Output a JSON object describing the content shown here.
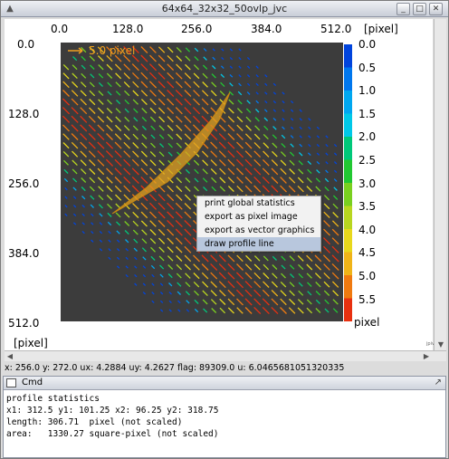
{
  "window": {
    "title": "64x64_32x32_50ovlp_jvc"
  },
  "plot": {
    "x_ticks": [
      "0.0",
      "128.0",
      "256.0",
      "384.0",
      "512.0"
    ],
    "x_unit": "[pixel]",
    "y_ticks": [
      "0.0",
      "128.0",
      "256.0",
      "384.0",
      "512.0"
    ],
    "y_unit": "[pixel]",
    "reference_vector_label": "5.0 pixel",
    "colorbar": {
      "labels": [
        "0.0",
        "0.5",
        "1.0",
        "1.5",
        "2.0",
        "2.5",
        "3.0",
        "3.5",
        "4.0",
        "4.5",
        "5.0",
        "5.5"
      ],
      "unit": "pixel",
      "colors": [
        "#0044dd",
        "#0077ee",
        "#00a7f0",
        "#00c8e8",
        "#00c87a",
        "#22c832",
        "#7ad020",
        "#b8d620",
        "#e8d81c",
        "#f0b418",
        "#f07a10",
        "#e83010"
      ]
    },
    "background_color": "#3c3c3c"
  },
  "context_menu": {
    "items": [
      "print global statistics",
      "export as pixel image",
      "export as vector graphics",
      "draw profile line"
    ],
    "selected_index": 3
  },
  "status_bar": {
    "text": "x: 256.0 y: 272.0 ux: 4.2884 uy: 4.2627 flag: 89309.0 u: 6.0465681051320335"
  },
  "cmd": {
    "title": "Cmd",
    "lines": [
      "profile statistics",
      "x1: 312.5 y1: 101.25 x2: 96.25 y2: 318.75",
      "length: 306.71  pixel (not scaled)",
      "area:   1330.27 square-pixel (not scaled)"
    ]
  }
}
